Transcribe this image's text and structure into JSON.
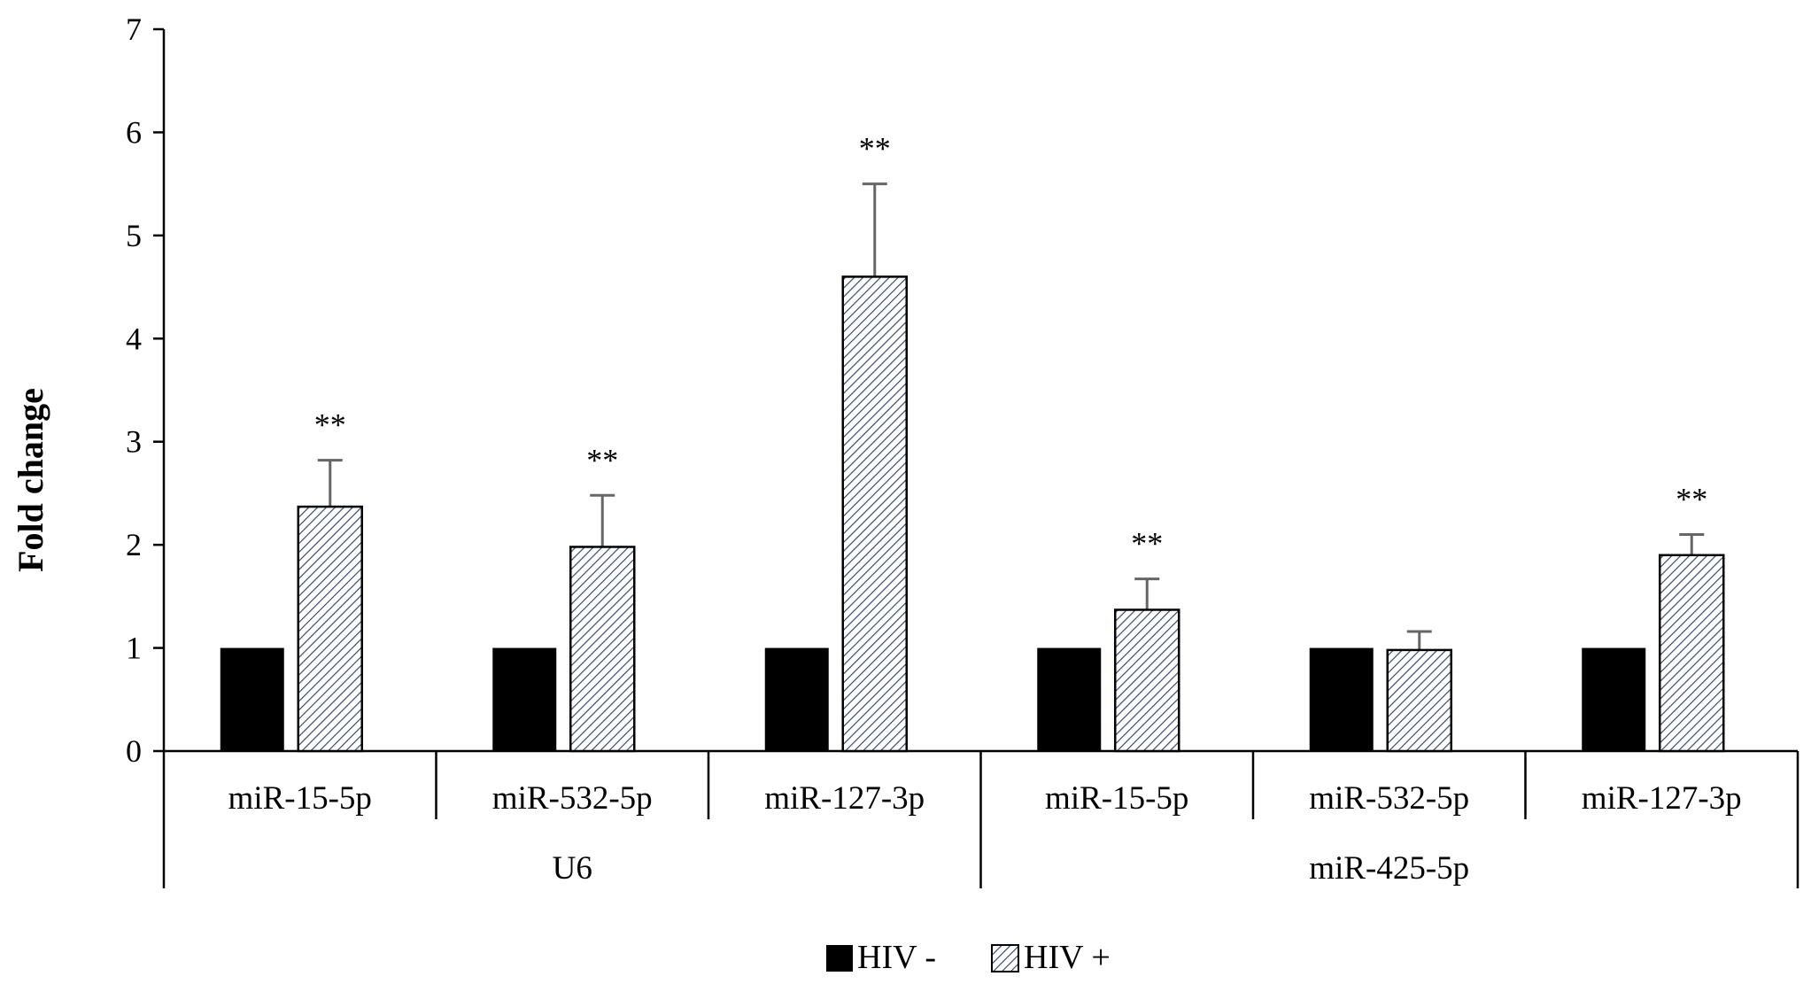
{
  "chart_data": {
    "type": "bar",
    "ylabel": "Fold change",
    "ylim": [
      0,
      7
    ],
    "yticks": [
      "0",
      "1",
      "2",
      "3",
      "4",
      "5",
      "6",
      "7"
    ],
    "categories": [
      "miR-15-5p",
      "miR-532-5p",
      "miR-127-3p",
      "miR-15-5p",
      "miR-532-5p",
      "miR-127-3p"
    ],
    "groups": [
      {
        "label": "U6",
        "span": [
          0,
          2
        ]
      },
      {
        "label": "miR-425-5p",
        "span": [
          3,
          5
        ]
      }
    ],
    "series": [
      {
        "name": "HIV -",
        "values": [
          1,
          1,
          1,
          1,
          1,
          1
        ],
        "errors": [
          0,
          0,
          0,
          0,
          0,
          0
        ],
        "color": "#000000"
      },
      {
        "name": "HIV +",
        "values": [
          2.37,
          1.98,
          4.6,
          1.37,
          0.98,
          1.9
        ],
        "errors": [
          0.45,
          0.5,
          0.9,
          0.3,
          0.18,
          0.2
        ],
        "color": "#ffffff",
        "pattern": "diagonal-hatch"
      }
    ],
    "significance": [
      "**",
      "**",
      "**",
      "**",
      "",
      "**"
    ],
    "grid": false,
    "legend_position": "bottom-center"
  }
}
